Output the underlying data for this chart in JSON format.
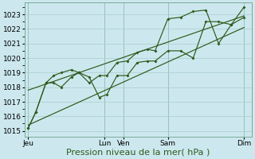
{
  "background_color": "#cce8ee",
  "plot_bg_color": "#cce8ee",
  "grid_color": "#aacccc",
  "line_color": "#2d5a1b",
  "yticks": [
    1015,
    1016,
    1017,
    1018,
    1019,
    1020,
    1021,
    1022,
    1023
  ],
  "xlabel": "Pression niveau de la mer( hPa )",
  "xlabel_fontsize": 8,
  "tick_fontsize": 6.5,
  "day_labels": [
    "Jeu",
    "",
    "Lun",
    "Ven",
    "",
    "Sam",
    "",
    "Dim"
  ],
  "day_tick_positions": [
    0.0,
    3.0,
    3.75,
    5.5,
    8.5
  ],
  "day_tick_labels": [
    "Jeu",
    "Lun",
    "Ven",
    "Sam",
    "Dim"
  ],
  "vline_positions": [
    0.0,
    3.0,
    3.75,
    5.5,
    8.5
  ],
  "line1_x": [
    0.0,
    0.3,
    0.7,
    1.0,
    1.3,
    1.7,
    2.0,
    2.4,
    2.8,
    3.1,
    3.5,
    3.9,
    4.3,
    4.7,
    5.0,
    5.5,
    6.0,
    6.5,
    7.0,
    7.5,
    8.0,
    8.5
  ],
  "line1_y": [
    1015.2,
    1016.3,
    1018.3,
    1018.3,
    1018.0,
    1018.7,
    1019.0,
    1018.7,
    1017.3,
    1017.5,
    1018.8,
    1018.8,
    1019.7,
    1019.8,
    1019.8,
    1020.5,
    1020.5,
    1020.0,
    1022.5,
    1022.5,
    1022.3,
    1022.8
  ],
  "line2_x": [
    0.0,
    0.3,
    0.7,
    1.0,
    1.3,
    1.7,
    2.0,
    2.4,
    2.8,
    3.1,
    3.5,
    3.9,
    4.3,
    4.7,
    5.0,
    5.5,
    6.0,
    6.5,
    7.0,
    7.5,
    8.0,
    8.5
  ],
  "line2_y": [
    1015.2,
    1016.3,
    1018.3,
    1018.8,
    1019.0,
    1019.2,
    1019.0,
    1018.3,
    1018.8,
    1018.8,
    1019.7,
    1019.8,
    1020.4,
    1020.6,
    1020.5,
    1022.7,
    1022.8,
    1023.2,
    1023.3,
    1021.0,
    1022.3,
    1023.5
  ],
  "trend1_x": [
    0.0,
    8.5
  ],
  "trend1_y": [
    1015.4,
    1022.1
  ],
  "trend2_x": [
    0.0,
    8.5
  ],
  "trend2_y": [
    1017.8,
    1022.9
  ],
  "xlim": [
    -0.15,
    8.8
  ],
  "ylim": [
    1014.6,
    1023.8
  ]
}
